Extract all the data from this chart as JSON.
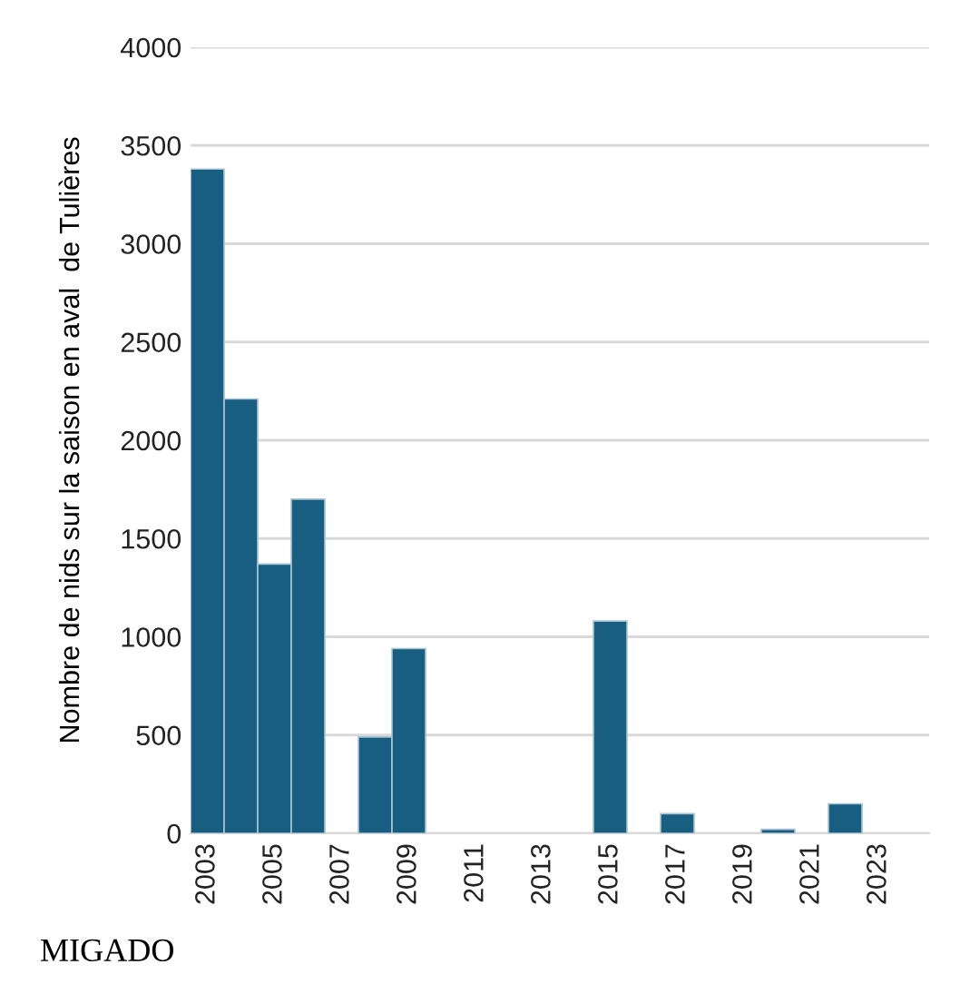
{
  "chart_data": {
    "type": "bar",
    "ylabel": "Nombre de nids sur la saison en aval  de Tulières",
    "categories": [
      "2003",
      null,
      "2005",
      null,
      "2007",
      null,
      "2009",
      null,
      "2011",
      null,
      "2013",
      null,
      "2015",
      null,
      "2017",
      null,
      "2019",
      null,
      "2021",
      null,
      "2023",
      null
    ],
    "values": [
      3380,
      2210,
      1370,
      1700,
      0,
      490,
      940,
      0,
      0,
      0,
      0,
      0,
      1080,
      0,
      100,
      0,
      0,
      20,
      0,
      150,
      0,
      0
    ],
    "color": "#175e80",
    "ylim": [
      0,
      4000
    ],
    "yticks": [
      0,
      500,
      1000,
      1500,
      2000,
      2500,
      3000,
      3500,
      4000
    ],
    "grid": "y",
    "legend": false,
    "annotations": [
      "MIGADO"
    ]
  }
}
